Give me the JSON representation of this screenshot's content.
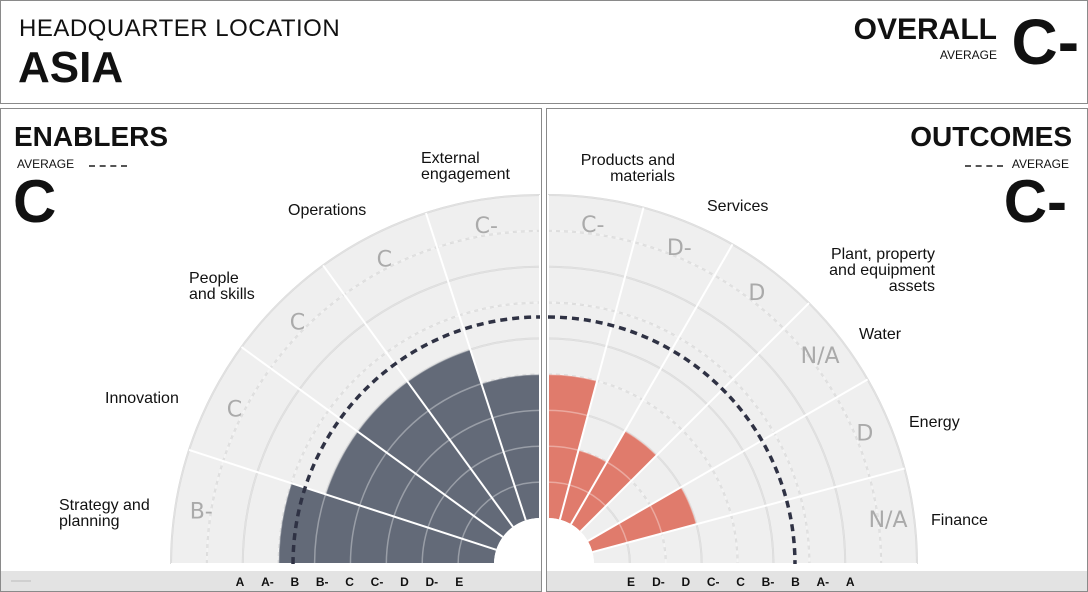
{
  "header": {
    "hq_label": "HEADQUARTER LOCATION",
    "hq_value": "ASIA",
    "overall_label": "OVERALL",
    "overall_avg_label": "AVERAGE",
    "overall_grade": "C-"
  },
  "enablers": {
    "title": "ENABLERS",
    "avg_label": "AVERAGE",
    "grade": "C"
  },
  "outcomes": {
    "title": "OUTCOMES",
    "avg_label": "AVERAGE",
    "grade": "C-"
  },
  "colors": {
    "bg_sector": "#efefef",
    "grid": "#d2d2d2",
    "enablers_bar": "#636a78",
    "outcomes_bar": "#e07b6c",
    "avg_line": "#2f3244",
    "grade_text": "#aaaaaa"
  },
  "chart_data": [
    {
      "type": "polar-bar",
      "name": "ENABLERS",
      "scale": [
        "A",
        "A-",
        "B",
        "B-",
        "C",
        "C-",
        "D",
        "D-",
        "E"
      ],
      "categories": [
        {
          "label": "Strategy and planning",
          "grade": "B-",
          "value": "B-"
        },
        {
          "label": "Innovation",
          "grade": "C",
          "value": "C"
        },
        {
          "label": "People and skills",
          "grade": "C",
          "value": "C"
        },
        {
          "label": "Operations",
          "grade": "C",
          "value": "C"
        },
        {
          "label": "External engagement",
          "grade": "C-",
          "value": "C-"
        }
      ],
      "average": "C"
    },
    {
      "type": "polar-bar",
      "name": "OUTCOMES",
      "scale": [
        "E",
        "D-",
        "D",
        "C-",
        "C",
        "B-",
        "B",
        "A-",
        "A"
      ],
      "categories": [
        {
          "label": "Products and materials",
          "grade": "C-",
          "value": "C-"
        },
        {
          "label": "Services",
          "grade": "D-",
          "value": "D-"
        },
        {
          "label": "Plant, property and equipment assets",
          "grade": "D",
          "value": "D"
        },
        {
          "label": "Water",
          "grade": "N/A",
          "value": null
        },
        {
          "label": "Energy",
          "grade": "D",
          "value": "D"
        },
        {
          "label": "Finance",
          "grade": "N/A",
          "value": null
        }
      ],
      "average": "C-"
    }
  ]
}
